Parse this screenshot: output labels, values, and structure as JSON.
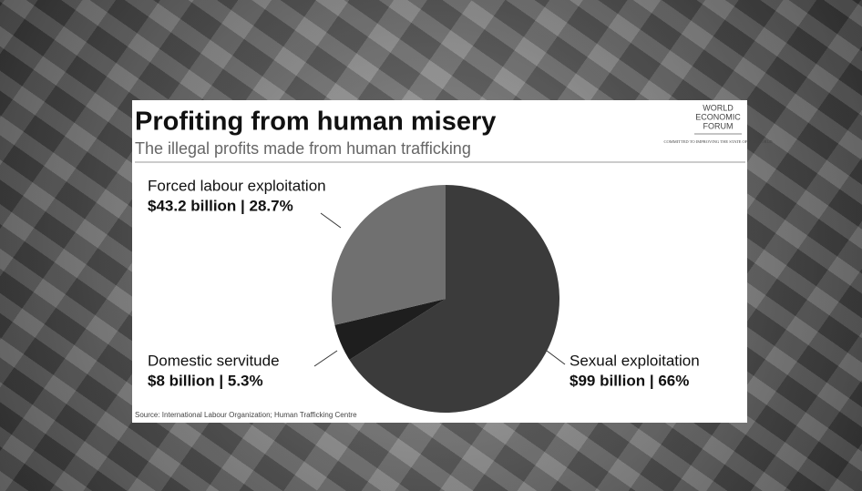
{
  "chart_data": {
    "type": "pie",
    "title": "Profiting from human misery",
    "subtitle": "The illegal profits made from human trafficking",
    "categories": [
      "Sexual exploitation",
      "Domestic servitude",
      "Forced labour exploitation"
    ],
    "values": [
      66,
      5.3,
      28.7
    ],
    "value_labels": [
      "$99 billion | 66%",
      "$8 billion | 5.3%",
      "$43.2 billion | 28.7%"
    ],
    "colors": [
      "#3b3b3b",
      "#1e1e1e",
      "#707070"
    ],
    "source": "Source: International Labour Organization; Human Trafficking Centre",
    "logo": [
      "WORLD",
      "ECONOMIC",
      "FORUM"
    ],
    "logo_tagline": "COMMITTED TO IMPROVING THE STATE OF THE WORLD"
  }
}
